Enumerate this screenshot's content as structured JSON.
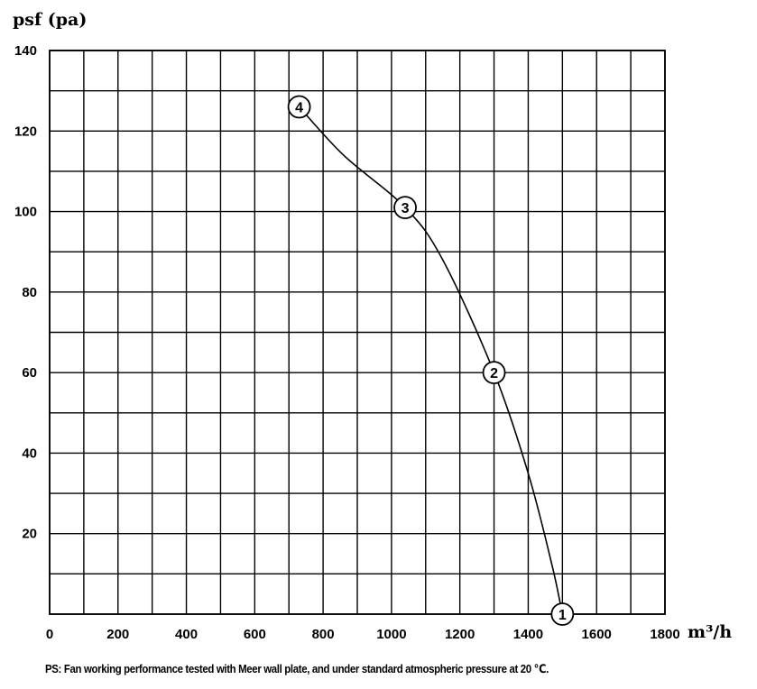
{
  "chart_data": {
    "type": "line",
    "ylabel": "psf (pa)",
    "xlabel": "m³/h",
    "xlim": [
      0,
      1800
    ],
    "ylim": [
      0,
      140
    ],
    "x_ticks": [
      "0",
      "200",
      "400",
      "600",
      "800",
      "1000",
      "1200",
      "1400",
      "1600",
      "1800"
    ],
    "y_ticks": [
      "20",
      "40",
      "60",
      "80",
      "100",
      "120",
      "140"
    ],
    "grid": true,
    "grid_x_step": 100,
    "grid_y_step": 10,
    "series": [
      {
        "curve": [
          {
            "x": 730,
            "y": 126
          },
          {
            "x": 860,
            "y": 114
          },
          {
            "x": 1040,
            "y": 101
          },
          {
            "x": 1150,
            "y": 88
          },
          {
            "x": 1300,
            "y": 60
          },
          {
            "x": 1400,
            "y": 35
          },
          {
            "x": 1470,
            "y": 12
          },
          {
            "x": 1500,
            "y": 0
          }
        ],
        "markers": [
          {
            "label": "1",
            "x": 1500,
            "y": 0
          },
          {
            "label": "2",
            "x": 1300,
            "y": 60
          },
          {
            "label": "3",
            "x": 1040,
            "y": 101
          },
          {
            "label": "4",
            "x": 730,
            "y": 126
          }
        ]
      }
    ]
  },
  "footnote": "PS: Fan working performance tested with Meer wall plate, and under standard atmospheric pressure at 20 ℃."
}
